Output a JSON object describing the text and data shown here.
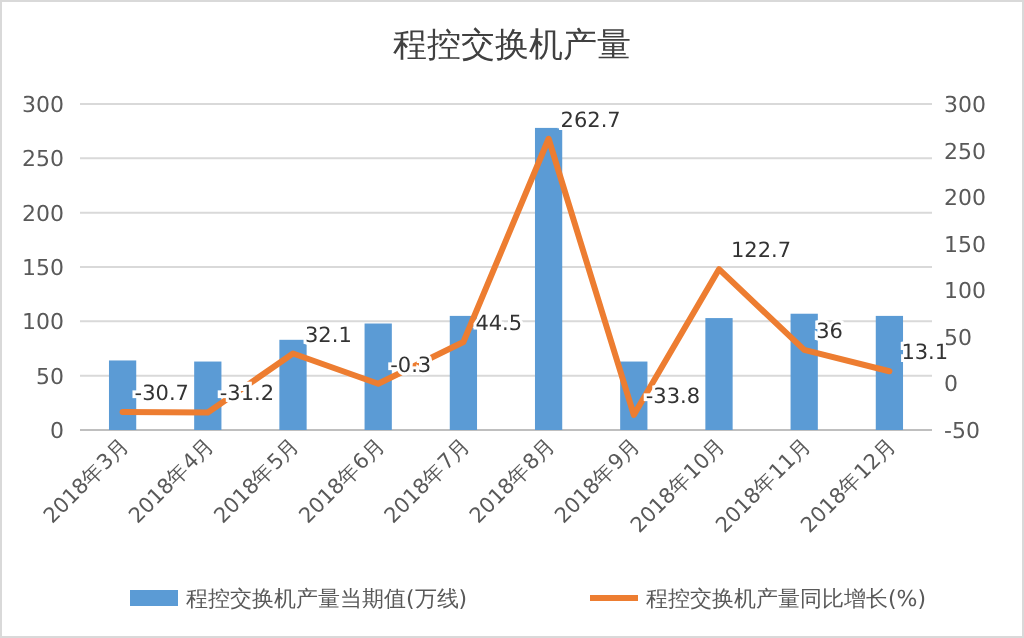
{
  "chart_data": {
    "type": "bar",
    "title": "程控交换机产量",
    "categories": [
      "2018年3月",
      "2018年4月",
      "2018年5月",
      "2018年6月",
      "2018年7月",
      "2018年8月",
      "2018年9月",
      "2018年10月",
      "2018年11月",
      "2018年12月"
    ],
    "series": [
      {
        "name": "程控交换机产量当期值(万线)",
        "color": "#5b9bd5",
        "values": [
          64,
          63,
          83,
          98,
          105,
          278,
          63,
          103,
          107,
          105
        ]
      },
      {
        "name": "程控交换机产量同比增长(%)",
        "type": "line",
        "axis": "y2",
        "color": "#ed7d31",
        "values": [
          -30.7,
          -31.2,
          32.1,
          -0.3,
          44.5,
          262.7,
          -33.8,
          122.7,
          36,
          13.1
        ],
        "value_labels": [
          "-30.7",
          "-31.2",
          "32.1",
          "-0.3",
          "44.5",
          "262.7",
          "-33.8",
          "122.7",
          "36",
          "13.1"
        ]
      }
    ],
    "ylim": [
      0,
      300
    ],
    "yticks": [
      0,
      50,
      100,
      150,
      200,
      250,
      300
    ],
    "y2lim": [
      -50,
      300
    ],
    "y2ticks": [
      -50,
      0,
      50,
      100,
      150,
      200,
      250,
      300
    ],
    "grid": "y",
    "legend": "bottom"
  }
}
